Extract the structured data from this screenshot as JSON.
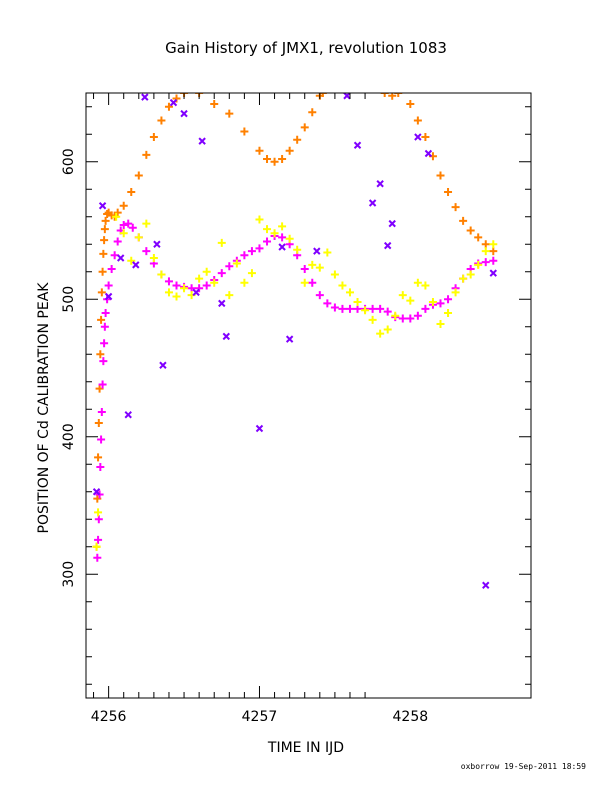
{
  "chart_data": {
    "type": "scatter",
    "title": "Gain History of JMX1, revolution 1083",
    "xlabel": "TIME IN IJD",
    "ylabel": "POSITION OF Cd CALIBRATION PEAK",
    "xlim": [
      4255.85,
      4258.8
    ],
    "ylim": [
      210,
      650
    ],
    "x_ticks": [
      4256,
      4257,
      4258
    ],
    "y_ticks": [
      300,
      400,
      500,
      600
    ],
    "footer": "oxborrow 19-Sep-2011 18:59",
    "grid": false,
    "legend": "none",
    "colors": {
      "orange": "#ff8000",
      "magenta": "#ff00ff",
      "yellow": "#ffff00",
      "purple": "#8000ff"
    },
    "series": [
      {
        "color": "orange",
        "marker": "+",
        "points": [
          [
            4255.92,
            320
          ],
          [
            4255.925,
            355
          ],
          [
            4255.93,
            385
          ],
          [
            4255.935,
            410
          ],
          [
            4255.94,
            435
          ],
          [
            4255.945,
            460
          ],
          [
            4255.95,
            485
          ],
          [
            4255.955,
            505
          ],
          [
            4255.96,
            520
          ],
          [
            4255.965,
            533
          ],
          [
            4255.97,
            543
          ],
          [
            4255.975,
            551
          ],
          [
            4255.98,
            557
          ],
          [
            4255.99,
            562
          ],
          [
            4256.0,
            563
          ],
          [
            4256.02,
            561
          ],
          [
            4256.04,
            560
          ],
          [
            4256.06,
            563
          ],
          [
            4256.1,
            568
          ],
          [
            4256.15,
            578
          ],
          [
            4256.2,
            590
          ],
          [
            4256.25,
            605
          ],
          [
            4256.3,
            618
          ],
          [
            4256.35,
            630
          ],
          [
            4256.4,
            640
          ],
          [
            4256.45,
            646
          ],
          [
            4256.5,
            650
          ],
          [
            4256.6,
            650
          ],
          [
            4256.7,
            642
          ],
          [
            4256.8,
            635
          ],
          [
            4256.9,
            622
          ],
          [
            4257.0,
            608
          ],
          [
            4257.05,
            602
          ],
          [
            4257.1,
            600
          ],
          [
            4257.15,
            602
          ],
          [
            4257.2,
            608
          ],
          [
            4257.25,
            616
          ],
          [
            4257.3,
            625
          ],
          [
            4257.35,
            636
          ],
          [
            4257.4,
            648
          ],
          [
            4257.42,
            650
          ],
          [
            4257.83,
            650
          ],
          [
            4257.88,
            648
          ],
          [
            4257.92,
            650
          ],
          [
            4258.0,
            642
          ],
          [
            4258.05,
            630
          ],
          [
            4258.1,
            618
          ],
          [
            4258.15,
            604
          ],
          [
            4258.2,
            590
          ],
          [
            4258.25,
            578
          ],
          [
            4258.3,
            567
          ],
          [
            4258.35,
            557
          ],
          [
            4258.4,
            550
          ],
          [
            4258.45,
            545
          ],
          [
            4258.5,
            540
          ],
          [
            4258.55,
            535
          ]
        ]
      },
      {
        "color": "magenta",
        "marker": "+",
        "points": [
          [
            4255.925,
            312
          ],
          [
            4255.93,
            325
          ],
          [
            4255.935,
            340
          ],
          [
            4255.94,
            358
          ],
          [
            4255.945,
            378
          ],
          [
            4255.95,
            398
          ],
          [
            4255.955,
            418
          ],
          [
            4255.96,
            438
          ],
          [
            4255.965,
            455
          ],
          [
            4255.97,
            468
          ],
          [
            4255.975,
            480
          ],
          [
            4255.98,
            490
          ],
          [
            4255.99,
            500
          ],
          [
            4256.0,
            510
          ],
          [
            4256.02,
            522
          ],
          [
            4256.04,
            532
          ],
          [
            4256.06,
            542
          ],
          [
            4256.08,
            550
          ],
          [
            4256.1,
            554
          ],
          [
            4256.13,
            555
          ],
          [
            4256.16,
            552
          ],
          [
            4256.2,
            545
          ],
          [
            4256.25,
            535
          ],
          [
            4256.3,
            526
          ],
          [
            4256.35,
            518
          ],
          [
            4256.4,
            513
          ],
          [
            4256.45,
            510
          ],
          [
            4256.5,
            509
          ],
          [
            4256.55,
            508
          ],
          [
            4256.6,
            508
          ],
          [
            4256.65,
            510
          ],
          [
            4256.7,
            514
          ],
          [
            4256.75,
            519
          ],
          [
            4256.8,
            524
          ],
          [
            4256.85,
            528
          ],
          [
            4256.9,
            532
          ],
          [
            4256.95,
            535
          ],
          [
            4257.0,
            537
          ],
          [
            4257.05,
            542
          ],
          [
            4257.1,
            546
          ],
          [
            4257.15,
            545
          ],
          [
            4257.2,
            540
          ],
          [
            4257.25,
            532
          ],
          [
            4257.3,
            522
          ],
          [
            4257.35,
            512
          ],
          [
            4257.4,
            503
          ],
          [
            4257.45,
            497
          ],
          [
            4257.5,
            494
          ],
          [
            4257.55,
            493
          ],
          [
            4257.6,
            493
          ],
          [
            4257.65,
            493
          ],
          [
            4257.7,
            493
          ],
          [
            4257.75,
            493
          ],
          [
            4257.8,
            493
          ],
          [
            4257.85,
            491
          ],
          [
            4257.9,
            487
          ],
          [
            4257.95,
            486
          ],
          [
            4258.0,
            486
          ],
          [
            4258.05,
            488
          ],
          [
            4258.1,
            493
          ],
          [
            4258.15,
            496
          ],
          [
            4258.2,
            497
          ],
          [
            4258.25,
            500
          ],
          [
            4258.3,
            508
          ],
          [
            4258.35,
            515
          ],
          [
            4258.4,
            522
          ],
          [
            4258.45,
            526
          ],
          [
            4258.5,
            527
          ],
          [
            4258.55,
            528
          ]
        ]
      },
      {
        "color": "yellow",
        "marker": "+",
        "points": [
          [
            4255.92,
            320
          ],
          [
            4255.93,
            345
          ],
          [
            4256.05,
            560
          ],
          [
            4256.1,
            548
          ],
          [
            4256.15,
            528
          ],
          [
            4256.2,
            545
          ],
          [
            4256.25,
            555
          ],
          [
            4256.3,
            530
          ],
          [
            4256.35,
            518
          ],
          [
            4256.4,
            505
          ],
          [
            4256.45,
            502
          ],
          [
            4256.5,
            508
          ],
          [
            4256.55,
            503
          ],
          [
            4256.6,
            515
          ],
          [
            4256.65,
            520
          ],
          [
            4256.7,
            512
          ],
          [
            4256.75,
            541
          ],
          [
            4256.8,
            503
          ],
          [
            4256.85,
            526
          ],
          [
            4256.9,
            512
          ],
          [
            4256.95,
            519
          ],
          [
            4257.0,
            558
          ],
          [
            4257.05,
            551
          ],
          [
            4257.1,
            548
          ],
          [
            4257.15,
            553
          ],
          [
            4257.2,
            544
          ],
          [
            4257.25,
            536
          ],
          [
            4257.3,
            512
          ],
          [
            4257.35,
            525
          ],
          [
            4257.4,
            523
          ],
          [
            4257.45,
            534
          ],
          [
            4257.5,
            518
          ],
          [
            4257.55,
            510
          ],
          [
            4257.6,
            505
          ],
          [
            4257.65,
            498
          ],
          [
            4257.7,
            492
          ],
          [
            4257.75,
            485
          ],
          [
            4257.8,
            475
          ],
          [
            4257.85,
            478
          ],
          [
            4257.9,
            488
          ],
          [
            4257.95,
            503
          ],
          [
            4258.0,
            499
          ],
          [
            4258.05,
            512
          ],
          [
            4258.1,
            510
          ],
          [
            4258.15,
            498
          ],
          [
            4258.2,
            482
          ],
          [
            4258.25,
            490
          ],
          [
            4258.3,
            505
          ],
          [
            4258.35,
            515
          ],
          [
            4258.4,
            518
          ],
          [
            4258.45,
            525
          ],
          [
            4258.5,
            535
          ],
          [
            4258.55,
            540
          ]
        ]
      },
      {
        "color": "purple",
        "marker": "x",
        "points": [
          [
            4255.92,
            360
          ],
          [
            4255.96,
            568
          ],
          [
            4256.0,
            502
          ],
          [
            4256.08,
            530
          ],
          [
            4256.13,
            416
          ],
          [
            4256.18,
            525
          ],
          [
            4256.24,
            647
          ],
          [
            4256.32,
            540
          ],
          [
            4256.36,
            452
          ],
          [
            4256.43,
            643
          ],
          [
            4256.5,
            635
          ],
          [
            4256.58,
            505
          ],
          [
            4256.62,
            615
          ],
          [
            4256.75,
            497
          ],
          [
            4256.78,
            473
          ],
          [
            4257.0,
            406
          ],
          [
            4257.15,
            538
          ],
          [
            4257.2,
            471
          ],
          [
            4257.38,
            535
          ],
          [
            4257.58,
            648
          ],
          [
            4257.65,
            612
          ],
          [
            4257.75,
            570
          ],
          [
            4257.8,
            584
          ],
          [
            4257.85,
            539
          ],
          [
            4257.88,
            555
          ],
          [
            4258.05,
            618
          ],
          [
            4258.12,
            606
          ],
          [
            4258.5,
            292
          ],
          [
            4258.55,
            519
          ]
        ]
      }
    ]
  }
}
